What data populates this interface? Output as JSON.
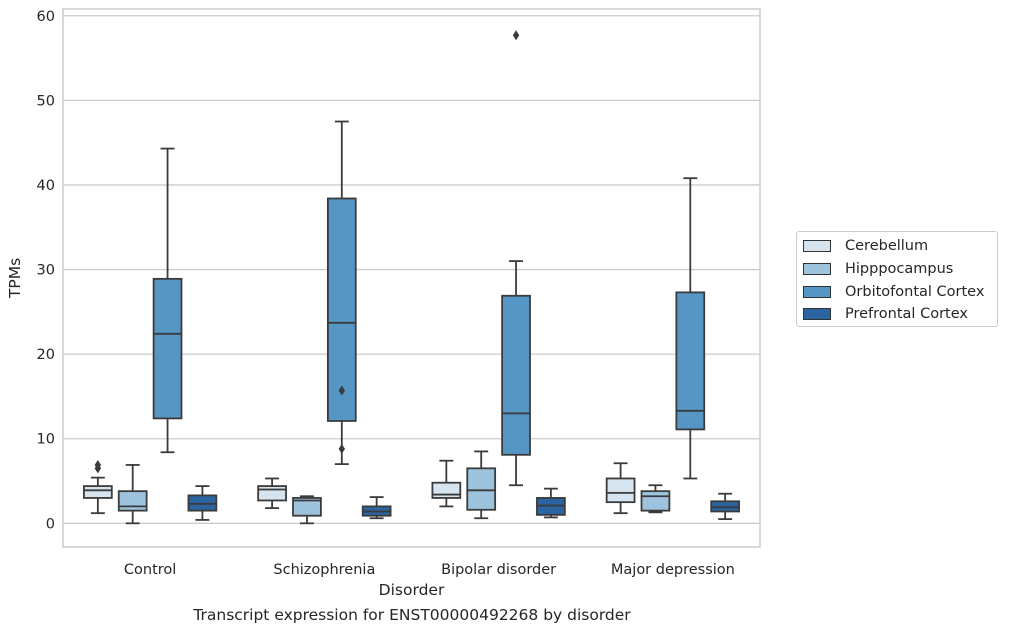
{
  "chart_data": {
    "type": "box",
    "title": "",
    "caption": "Transcript expression for ENST00000492268 by disorder",
    "xlabel": "Disorder",
    "ylabel": "TPMs",
    "ylim": [
      -2.8,
      60.8
    ],
    "yticks": [
      0,
      10,
      20,
      30,
      40,
      50,
      60
    ],
    "grid": "horizontal",
    "legend_position": "right",
    "categories": [
      "Control",
      "Schizophrenia",
      "Bipolar disorder",
      "Major depression"
    ],
    "series": [
      {
        "name": "Cerebellum",
        "color": "#d6e4f0",
        "boxes": [
          {
            "whislo": 1.2,
            "q1": 3.0,
            "med": 3.9,
            "q3": 4.4,
            "whishi": 5.4,
            "fliers": [
              6.5,
              6.9
            ]
          },
          {
            "whislo": 1.8,
            "q1": 2.7,
            "med": 4.0,
            "q3": 4.4,
            "whishi": 5.3,
            "fliers": []
          },
          {
            "whislo": 2.0,
            "q1": 3.0,
            "med": 3.4,
            "q3": 4.8,
            "whishi": 7.4,
            "fliers": []
          },
          {
            "whislo": 1.2,
            "q1": 2.5,
            "med": 3.6,
            "q3": 5.3,
            "whishi": 7.1,
            "fliers": []
          }
        ]
      },
      {
        "name": "Hipppocampus",
        "color": "#9dc3dd",
        "boxes": [
          {
            "whislo": 0.0,
            "q1": 1.5,
            "med": 2.0,
            "q3": 3.8,
            "whishi": 6.9,
            "fliers": []
          },
          {
            "whislo": 0.0,
            "q1": 0.9,
            "med": 2.7,
            "q3": 3.0,
            "whishi": 3.2,
            "fliers": []
          },
          {
            "whislo": 0.6,
            "q1": 1.6,
            "med": 3.9,
            "q3": 6.5,
            "whishi": 8.5,
            "fliers": []
          },
          {
            "whislo": 1.3,
            "q1": 1.5,
            "med": 3.2,
            "q3": 3.8,
            "whishi": 4.5,
            "fliers": []
          }
        ]
      },
      {
        "name": "Orbitofontal Cortex",
        "color": "#5596c4",
        "boxes": [
          {
            "whislo": 8.4,
            "q1": 12.4,
            "med": 22.4,
            "q3": 28.9,
            "whishi": 44.3,
            "fliers": []
          },
          {
            "whislo": 7.0,
            "q1": 12.1,
            "med": 23.7,
            "q3": 38.4,
            "whishi": 47.5,
            "fliers": [
              8.8,
              15.7
            ]
          },
          {
            "whislo": 4.5,
            "q1": 8.1,
            "med": 13.0,
            "q3": 26.9,
            "whishi": 31.0,
            "fliers": [
              57.7
            ]
          },
          {
            "whislo": 5.3,
            "q1": 11.1,
            "med": 13.3,
            "q3": 27.3,
            "whishi": 40.8,
            "fliers": []
          }
        ]
      },
      {
        "name": "Prefrontal Cortex",
        "color": "#2b64a0",
        "boxes": [
          {
            "whislo": 0.4,
            "q1": 1.5,
            "med": 2.3,
            "q3": 3.3,
            "whishi": 4.4,
            "fliers": []
          },
          {
            "whislo": 0.6,
            "q1": 0.9,
            "med": 1.4,
            "q3": 2.0,
            "whishi": 3.1,
            "fliers": []
          },
          {
            "whislo": 0.7,
            "q1": 1.0,
            "med": 2.1,
            "q3": 3.0,
            "whishi": 4.1,
            "fliers": []
          },
          {
            "whislo": 0.5,
            "q1": 1.4,
            "med": 1.9,
            "q3": 2.6,
            "whishi": 3.5,
            "fliers": []
          }
        ]
      }
    ]
  }
}
